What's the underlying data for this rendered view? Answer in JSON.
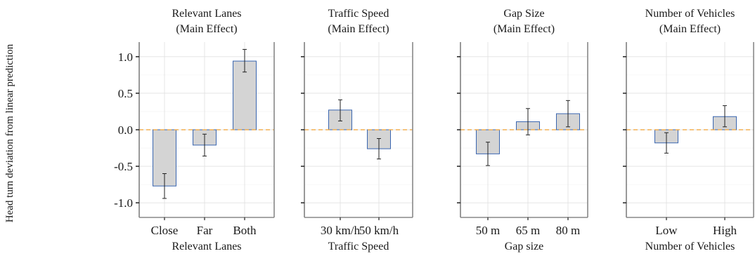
{
  "chart_data": {
    "type": "bar",
    "ylabel": "Head turn deviation from linear prediction",
    "ylim": [
      -1.2,
      1.2
    ],
    "yticks": [
      1.0,
      0.5,
      0.0,
      -0.5,
      -1.0
    ],
    "ytick_labels": [
      "1.0",
      "0.5",
      "0.0",
      "-0.5",
      "-1.0"
    ],
    "reference_line": {
      "y": 0,
      "color": "#f0a030",
      "style": "dashed"
    },
    "bar_fill": "#d4d4d4",
    "bar_stroke": "#3a66b0",
    "grid": true,
    "panels": [
      {
        "title_line1": "Relevant Lanes",
        "title_line2": "(Main Effect)",
        "xlabel": "Relevant Lanes",
        "categories": [
          "Close",
          "Far",
          "Both"
        ],
        "values": [
          -0.77,
          -0.21,
          0.94
        ],
        "error_low": [
          -0.94,
          -0.36,
          0.79
        ],
        "error_high": [
          -0.6,
          -0.06,
          1.1
        ]
      },
      {
        "title_line1": "Traffic Speed",
        "title_line2": "(Main Effect)",
        "xlabel": "Traffic Speed",
        "categories": [
          "30 km/h",
          "50 km/h"
        ],
        "values": [
          0.27,
          -0.26
        ],
        "error_low": [
          0.12,
          -0.4
        ],
        "error_high": [
          0.41,
          -0.12
        ]
      },
      {
        "title_line1": "Gap Size",
        "title_line2": "(Main Effect)",
        "xlabel": "Gap size",
        "categories": [
          "50 m",
          "65 m",
          "80 m"
        ],
        "values": [
          -0.33,
          0.11,
          0.22
        ],
        "error_low": [
          -0.49,
          -0.07,
          0.04
        ],
        "error_high": [
          -0.17,
          0.29,
          0.4
        ]
      },
      {
        "title_line1": "Number of Vehicles",
        "title_line2": "(Main Effect)",
        "xlabel": "Number of Vehicles",
        "categories": [
          "Low",
          "High"
        ],
        "values": [
          -0.18,
          0.18
        ],
        "error_low": [
          -0.32,
          0.04
        ],
        "error_high": [
          -0.04,
          0.33
        ]
      }
    ]
  }
}
